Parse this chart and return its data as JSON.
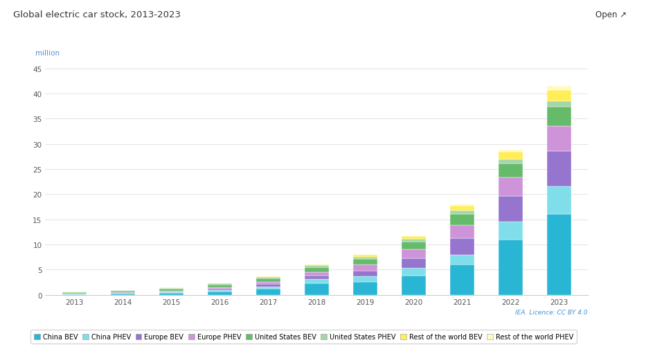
{
  "title": "Global electric car stock, 2013-2023",
  "ylabel": "million",
  "open_label": "Open ↗",
  "license_text": "IEA. Licence: CC BY 4.0",
  "years": [
    2013,
    2014,
    2015,
    2016,
    2017,
    2018,
    2019,
    2020,
    2021,
    2022,
    2023
  ],
  "series": {
    "China BEV": [
      0.16,
      0.23,
      0.31,
      0.65,
      1.23,
      2.3,
      2.6,
      3.8,
      6.0,
      11.0,
      16.0
    ],
    "China PHEV": [
      0.04,
      0.07,
      0.14,
      0.24,
      0.42,
      0.77,
      1.07,
      1.47,
      1.88,
      3.6,
      5.6
    ],
    "Europe BEV": [
      0.05,
      0.09,
      0.17,
      0.3,
      0.47,
      0.74,
      1.15,
      1.97,
      3.34,
      5.0,
      7.0
    ],
    "Europe PHEV": [
      0.04,
      0.08,
      0.17,
      0.28,
      0.45,
      0.75,
      1.2,
      1.8,
      2.7,
      3.7,
      5.0
    ],
    "United States BEV": [
      0.17,
      0.27,
      0.39,
      0.51,
      0.66,
      0.88,
      1.12,
      1.49,
      2.18,
      2.8,
      3.8
    ],
    "United States PHEV": [
      0.1,
      0.15,
      0.2,
      0.26,
      0.32,
      0.38,
      0.44,
      0.52,
      0.69,
      0.9,
      1.1
    ],
    "Rest of the world BEV": [
      0.02,
      0.03,
      0.05,
      0.08,
      0.13,
      0.21,
      0.35,
      0.56,
      0.88,
      1.4,
      2.2
    ],
    "Rest of the world PHEV": [
      0.01,
      0.01,
      0.02,
      0.03,
      0.05,
      0.08,
      0.13,
      0.2,
      0.33,
      0.5,
      0.8
    ]
  },
  "colors": {
    "China BEV": "#29b6d4",
    "China PHEV": "#80deea",
    "Europe BEV": "#9575cd",
    "Europe PHEV": "#ce93d8",
    "United States BEV": "#66bb6a",
    "United States PHEV": "#a5d6a7",
    "Rest of the world BEV": "#ffee58",
    "Rest of the world PHEV": "#fff9c4"
  },
  "ylim": [
    0,
    47
  ],
  "yticks": [
    0,
    5,
    10,
    15,
    20,
    25,
    30,
    35,
    40,
    45
  ],
  "bg_color": "#ffffff",
  "bar_width": 0.5,
  "title_fontsize": 9.5,
  "tick_fontsize": 7.5,
  "legend_fontsize": 7
}
